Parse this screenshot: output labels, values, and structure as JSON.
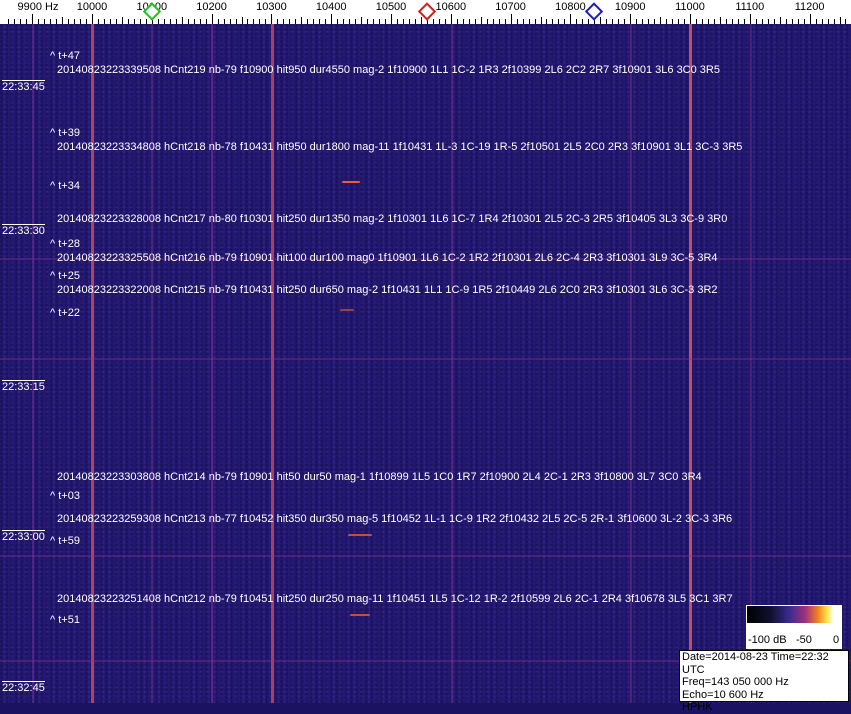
{
  "freq_axis": {
    "labels": [
      {
        "text": "9900 Hz",
        "f": 9900
      },
      {
        "text": "10000",
        "f": 10000
      },
      {
        "text": "10100",
        "f": 10100
      },
      {
        "text": "10200",
        "f": 10200
      },
      {
        "text": "10300",
        "f": 10300
      },
      {
        "text": "10400",
        "f": 10400
      },
      {
        "text": "10500",
        "f": 10500
      },
      {
        "text": "10600",
        "f": 10600
      },
      {
        "text": "10700",
        "f": 10700
      },
      {
        "text": "10800",
        "f": 10800
      },
      {
        "text": "10900",
        "f": 10900
      },
      {
        "text": "11000",
        "f": 11000
      },
      {
        "text": "11100",
        "f": 11100
      },
      {
        "text": "11200",
        "f": 11200
      }
    ],
    "markers": [
      {
        "name": "green-marker",
        "f": 10100,
        "color": "#22c022"
      },
      {
        "name": "red-marker",
        "f": 10560,
        "color": "#d02020"
      },
      {
        "name": "blue-marker",
        "f": 10840,
        "color": "#2020c0"
      }
    ]
  },
  "time_labels": [
    "22:33:45",
    "22:33:30",
    "22:33:15",
    "22:33:00",
    "22:32:45"
  ],
  "offset_marks": [
    "^ t+47",
    "^ t+39",
    "^ t+34",
    "^ t+28",
    "^ t+25",
    "^ t+22",
    "^ t+03",
    "^ t+59",
    "^ t+51"
  ],
  "detections": [
    "20140823223339508 hCnt219 nb-79 f10900 hit950 dur4550 mag-2 1f10900 1L1 1C-2 1R3 2f10399 2L6 2C2 2R7 3f10901 3L6 3C0 3R5",
    "20140823223334808 hCnt218 nb-78 f10431 hit950 dur1800 mag-11 1f10431 1L-3 1C-19 1R-5 2f10501 2L5 2C0 2R3 3f10901 3L1 3C-3 3R5",
    "20140823223328008 hCnt217 nb-80 f10301 hit250 dur1350 mag-2 1f10301 1L6 1C-7 1R4 2f10301 2L5 2C-3 2R5 3f10405 3L3 3C-9 3R0",
    "20140823223325508 hCnt216 nb-79 f10901 hit100 dur100 mag0 1f10901 1L6 1C-2 1R2 2f10301 2L6 2C-4 2R3 3f10301 3L9 3C-5 3R4",
    "20140823223322008 hCnt215 nb-79 f10431 hit250 dur650 mag-2 1f10431 1L1 1C-9 1R5 2f10449 2L6 2C0 2R3 3f10301 3L6 3C-3 3R2",
    "20140823223303808 hCnt214 nb-79 f10901 hit50 dur50 mag-1 1f10899 1L5 1C0 1R7 2f10900 2L4 2C-1 2R3 3f10800 3L7 3C0 3R4",
    "20140823223259308 hCnt213 nb-77 f10452 hit350 dur350 mag-5 1f10452 1L-1 1C-9 1R2 2f10432 2L5 2C-5 2R-1 3f10600 3L-2 3C-3 3R6",
    "20140823223251408 hCnt212 nb-79 f10451 hit250 dur250 mag-11 1f10451 1L5 1C-12 1R-2 2f10599 2L6 2C-1 2R4 3f10678 3L5 3C1 3R7"
  ],
  "colorbar": {
    "labels": [
      "-100 dB",
      "-50",
      "0"
    ]
  },
  "info": {
    "line1": "Date=2014-08-23 Time=22:32 UTC",
    "line2": "Freq=143 050 000 Hz",
    "line3": "Echo=10 600 Hz",
    "line4": "HPHK"
  }
}
